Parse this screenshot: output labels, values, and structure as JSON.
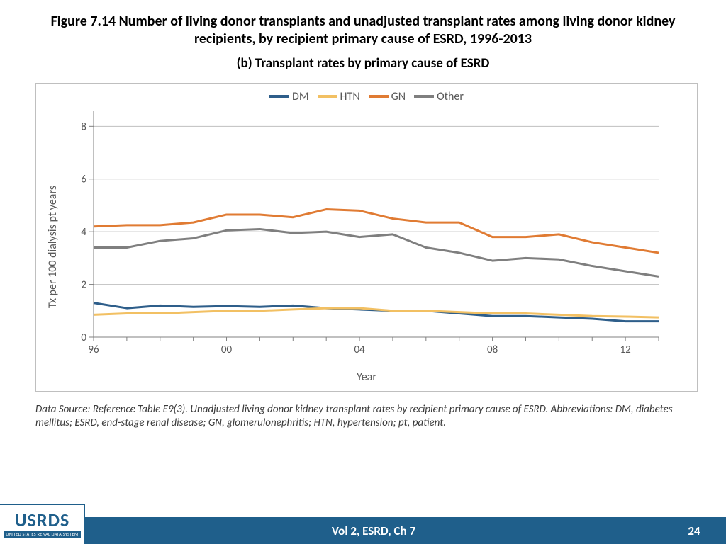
{
  "title": "Figure 7.14 Number of living donor transplants and unadjusted transplant rates among living donor kidney recipients, by recipient primary cause of ESRD, 1996-2013",
  "subtitle": "(b) Transplant rates by primary cause of ESRD",
  "caption": "Data Source: Reference Table E9(3). Unadjusted living donor kidney transplant rates by recipient primary cause of ESRD. Abbreviations: DM, diabetes mellitus; ESRD, end-stage renal disease; GN, glomerulonephritis; HTN, hypertension; pt, patient.",
  "footer_center": "Vol 2, ESRD, Ch 7",
  "footer_page": "24",
  "logo_main": "USRDS",
  "logo_sub": "UNITED STATES RENAL DATA SYSTEM",
  "chart": {
    "type": "line",
    "ylabel": "Tx per 100 dialysis pt years",
    "xlabel": "Year",
    "background_color": "#ffffff",
    "grid_color": "#bfbfbf",
    "axis_color": "#808080",
    "text_color": "#595959",
    "line_width": 3,
    "tick_fontsize": 15,
    "label_fontsize": 16,
    "xlim": [
      1996,
      2013
    ],
    "ylim": [
      0,
      8.6
    ],
    "yticks": [
      0,
      2,
      4,
      6,
      8
    ],
    "xticks": [
      1996,
      2000,
      2004,
      2008,
      2012
    ],
    "xtick_labels": [
      "96",
      "00",
      "04",
      "08",
      "12"
    ],
    "x_values": [
      1996,
      1997,
      1998,
      1999,
      2000,
      2001,
      2002,
      2003,
      2004,
      2005,
      2006,
      2007,
      2008,
      2009,
      2010,
      2011,
      2012,
      2013
    ],
    "series": [
      {
        "name": "DM",
        "color": "#2e5e8a",
        "values": [
          1.3,
          1.1,
          1.2,
          1.15,
          1.18,
          1.15,
          1.2,
          1.1,
          1.05,
          1.0,
          1.0,
          0.9,
          0.8,
          0.8,
          0.75,
          0.7,
          0.6,
          0.6
        ]
      },
      {
        "name": "HTN",
        "color": "#f2c063",
        "values": [
          0.85,
          0.9,
          0.9,
          0.95,
          1.0,
          1.0,
          1.05,
          1.1,
          1.1,
          1.0,
          1.0,
          0.95,
          0.9,
          0.9,
          0.85,
          0.8,
          0.78,
          0.75
        ]
      },
      {
        "name": "GN",
        "color": "#e07b33",
        "values": [
          4.2,
          4.25,
          4.25,
          4.35,
          4.65,
          4.65,
          4.55,
          4.85,
          4.8,
          4.5,
          4.35,
          4.35,
          3.8,
          3.8,
          3.9,
          3.6,
          3.4,
          3.2
        ]
      },
      {
        "name": "Other",
        "color": "#7f7f7f",
        "values": [
          3.4,
          3.4,
          3.65,
          3.75,
          4.05,
          4.1,
          3.95,
          4.0,
          3.8,
          3.9,
          3.4,
          3.2,
          2.9,
          3.0,
          2.95,
          2.7,
          2.5,
          2.3
        ]
      }
    ]
  }
}
